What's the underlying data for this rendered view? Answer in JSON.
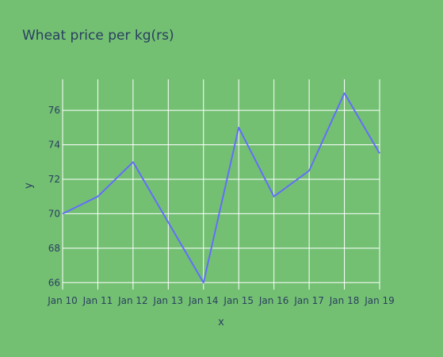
{
  "chart_data": {
    "type": "line",
    "title": "Wheat price per kg(rs)",
    "xlabel": "x",
    "ylabel": "y",
    "categories": [
      "Jan 10",
      "Jan 11",
      "Jan 12",
      "Jan 13",
      "Jan 14",
      "Jan 15",
      "Jan 16",
      "Jan 17",
      "Jan 18",
      "Jan 19"
    ],
    "series": [
      {
        "values": [
          70,
          71,
          73,
          69.5,
          66,
          75,
          71,
          72.5,
          77,
          73.5
        ]
      }
    ],
    "ylim": [
      65.6,
      77.8
    ],
    "yticks": [
      66,
      68,
      70,
      72,
      74,
      76
    ],
    "grid": true,
    "colors": {
      "background": "#73c073",
      "grid": "#ffffff",
      "line": "#636efa",
      "text": "#2a3f5f"
    }
  }
}
